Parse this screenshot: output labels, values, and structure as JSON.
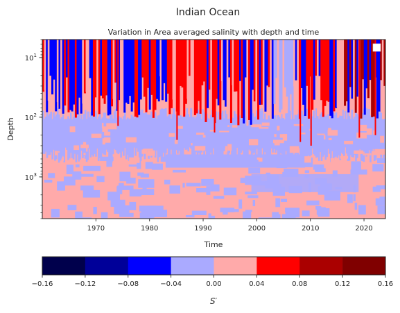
{
  "figure": {
    "suptitle": "Indian Ocean"
  },
  "chart_data": [
    {
      "type": "heatmap",
      "title": "Variation in Area averaged salinity with depth and time",
      "xlabel": "Time",
      "ylabel": "Depth",
      "x_ticks": [
        1970,
        1980,
        1990,
        2000,
        2010,
        2020
      ],
      "xlim": [
        1960,
        2024
      ],
      "y_scale": "log",
      "y_inverted": true,
      "ylim": [
        5,
        5000
      ],
      "y_ticks": [
        {
          "value": 10,
          "base": "10",
          "exp": "1"
        },
        {
          "value": 100,
          "base": "10",
          "exp": "2"
        },
        {
          "value": 1000,
          "base": "10",
          "exp": "3"
        }
      ],
      "legend": "top-right (empty)",
      "grid": false,
      "layers": [
        {
          "depth_top": 5,
          "depth_bottom": 80,
          "pattern": "alternating anomalies",
          "levels": [
            "-0.08 to -0.04",
            "0.04 to 0.08"
          ]
        },
        {
          "depth_top": 80,
          "depth_bottom": 500,
          "dominant": "-0.04 to 0.00"
        },
        {
          "depth_top": 500,
          "depth_bottom": 5000,
          "dominant": "0.00 to 0.04"
        }
      ]
    },
    {
      "type": "colorbar",
      "label_base": "S",
      "label_prime": "′",
      "boundaries": [
        -0.16,
        -0.12,
        -0.08,
        -0.04,
        0.0,
        0.04,
        0.08,
        0.12,
        0.16
      ],
      "tick_labels": [
        "−0.16",
        "−0.12",
        "−0.08",
        "−0.04",
        "0.00",
        "0.04",
        "0.08",
        "0.12",
        "0.16"
      ],
      "colors": [
        "#00004c",
        "#000099",
        "#0000ff",
        "#aaaaff",
        "#ffaaaa",
        "#ff0000",
        "#aa0000",
        "#800000"
      ]
    }
  ]
}
